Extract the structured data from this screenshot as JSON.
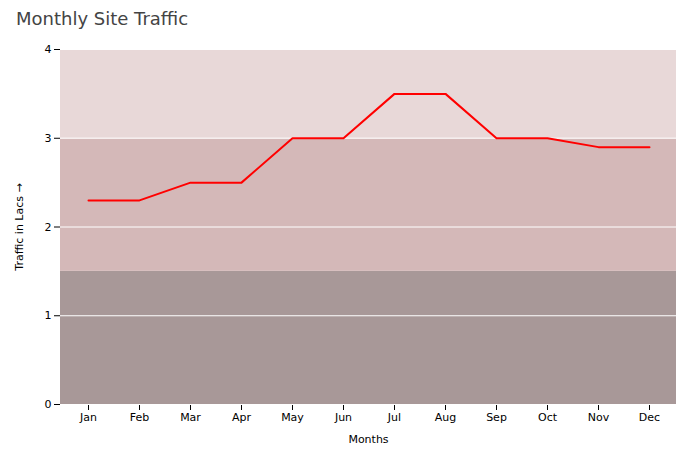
{
  "chart_data": {
    "type": "line",
    "title": "Monthly Site Traffic",
    "xlabel": "Months",
    "ylabel": "Traffic in Lacs",
    "categories": [
      "Jan",
      "Feb",
      "Mar",
      "Apr",
      "May",
      "Jun",
      "Jul",
      "Aug",
      "Sep",
      "Oct",
      "Nov",
      "Dec"
    ],
    "values": [
      2.3,
      2.3,
      2.5,
      2.5,
      3.0,
      3.0,
      3.5,
      3.5,
      3.0,
      3.0,
      2.9,
      2.9
    ],
    "color": "#ff0000",
    "ylim": [
      0,
      4
    ],
    "yticks": [
      0,
      1,
      2,
      3,
      4
    ],
    "grid": true,
    "bands": [
      {
        "from": 0,
        "to": 1.5,
        "color": "#a89898"
      },
      {
        "from": 1.5,
        "to": 3.0,
        "color": "#d4b8b8"
      },
      {
        "from": 3.0,
        "to": 4.0,
        "color": "#e8d8d8"
      }
    ]
  }
}
